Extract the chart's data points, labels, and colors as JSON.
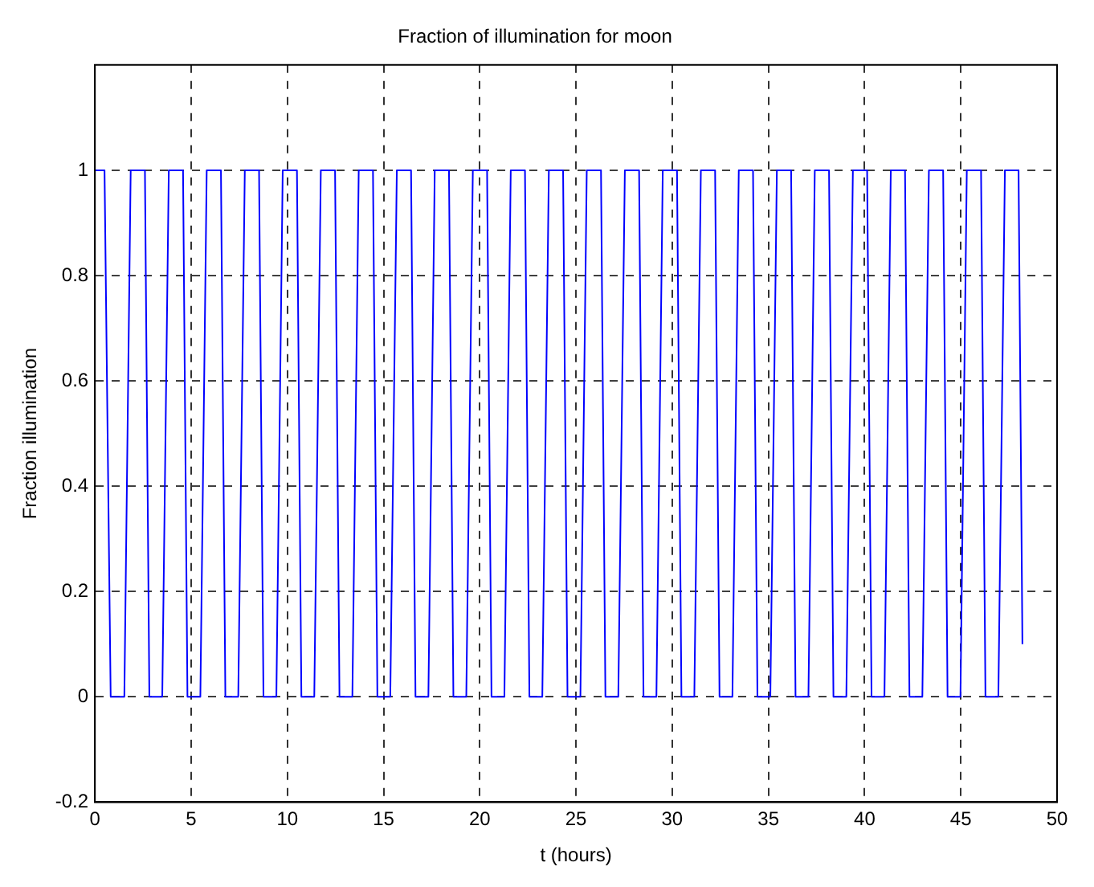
{
  "chart_data": {
    "type": "line",
    "title": "Fraction of illumination for moon",
    "xlabel": "t (hours)",
    "ylabel": "Fraction illumination",
    "xlim": [
      0,
      50
    ],
    "xticks": [
      0,
      5,
      10,
      15,
      20,
      25,
      30,
      35,
      40,
      45,
      50
    ],
    "ylim": [
      -0.2,
      1.2
    ],
    "yticks": [
      -0.2,
      0,
      0.2,
      0.4,
      0.6,
      0.8,
      1
    ],
    "grid": true,
    "legend": false,
    "series": [
      {
        "color": "#0000ff",
        "x": [
          0,
          0.5,
          0.82,
          1.53,
          1.86,
          2.6,
          2.83,
          3.5,
          3.84,
          4.58,
          4.81,
          5.48,
          5.81,
          6.55,
          6.78,
          7.45,
          7.79,
          8.53,
          8.76,
          9.43,
          9.76,
          10.5,
          10.73,
          11.4,
          11.74,
          12.48,
          12.71,
          13.38,
          13.71,
          14.45,
          14.68,
          15.35,
          15.69,
          16.43,
          16.66,
          17.33,
          17.66,
          18.4,
          18.63,
          19.3,
          19.64,
          20.38,
          20.61,
          21.28,
          21.61,
          22.35,
          22.58,
          23.25,
          23.59,
          24.33,
          24.56,
          25.23,
          25.56,
          26.3,
          26.53,
          27.2,
          27.54,
          28.28,
          28.51,
          29.18,
          29.51,
          30.25,
          30.48,
          31.15,
          31.49,
          32.23,
          32.46,
          33.13,
          33.46,
          34.2,
          34.43,
          35.1,
          35.44,
          36.18,
          36.41,
          37.08,
          37.41,
          38.15,
          38.38,
          39.05,
          39.39,
          40.13,
          40.36,
          41.03,
          41.36,
          42.1,
          42.33,
          43.0,
          43.34,
          44.08,
          44.31,
          44.98,
          45.31,
          46.05,
          46.28,
          46.95,
          47.29,
          48.0,
          48.2
        ],
        "values": [
          1,
          1,
          0,
          0,
          1,
          1,
          0,
          0,
          1,
          1,
          0,
          0,
          1,
          1,
          0,
          0,
          1,
          1,
          0,
          0,
          1,
          1,
          0,
          0,
          1,
          1,
          0,
          0,
          1,
          1,
          0,
          0,
          1,
          1,
          0,
          0,
          1,
          1,
          0,
          0,
          1,
          1,
          0,
          0,
          1,
          1,
          0,
          0,
          1,
          1,
          0,
          0,
          1,
          1,
          0,
          0,
          1,
          1,
          0,
          0,
          1,
          1,
          0,
          0,
          1,
          1,
          0,
          0,
          1,
          1,
          0,
          0,
          1,
          1,
          0,
          0,
          1,
          1,
          0,
          0,
          1,
          1,
          0,
          0,
          1,
          1,
          0,
          0,
          1,
          1,
          0,
          0,
          1,
          1,
          0,
          0,
          1,
          1,
          0.1
        ]
      }
    ]
  }
}
